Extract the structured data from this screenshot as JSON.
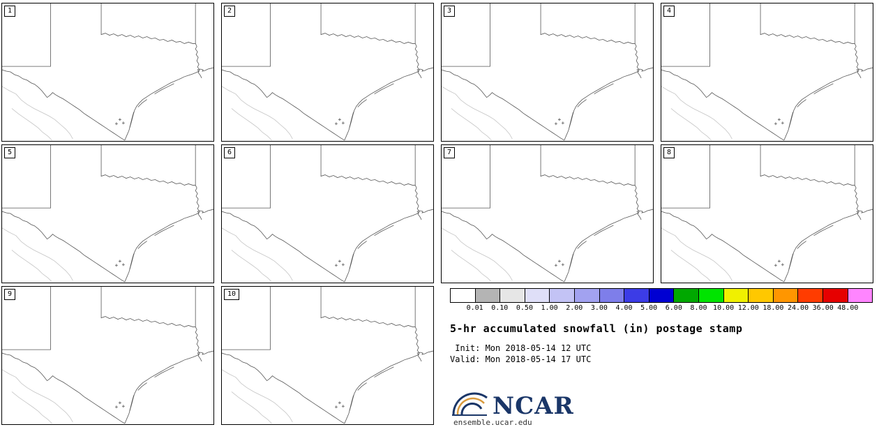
{
  "panels": [
    {
      "label": "1"
    },
    {
      "label": "2"
    },
    {
      "label": "3"
    },
    {
      "label": "4"
    },
    {
      "label": "5"
    },
    {
      "label": "6"
    },
    {
      "label": "7"
    },
    {
      "label": "8"
    },
    {
      "label": "9"
    },
    {
      "label": "10"
    }
  ],
  "colorbar": {
    "labels": [
      "0.01",
      "0.10",
      "0.50",
      "1.00",
      "2.00",
      "3.00",
      "4.00",
      "5.00",
      "6.00",
      "8.00",
      "10.00",
      "12.00",
      "18.00",
      "24.00",
      "36.00",
      "48.00"
    ],
    "colors": [
      "#ffffff",
      "#b4b4b4",
      "#e6e6e6",
      "#dfdff8",
      "#c3c3f5",
      "#a2a2f0",
      "#7e7eea",
      "#3c3ce6",
      "#0000d2",
      "#00a800",
      "#00e400",
      "#f0f000",
      "#ffc800",
      "#ff9600",
      "#ff3c00",
      "#e60000",
      "#ff85ff"
    ]
  },
  "legend": {
    "title": "5-hr accumulated snowfall (in) postage stamp",
    "init_line": " Init: Mon 2018-05-14 12 UTC",
    "valid_line": "Valid: Mon 2018-05-14 17 UTC"
  },
  "branding": {
    "logo_text": "NCAR",
    "url": "ensemble.ucar.edu",
    "logo_color": "#1a3668",
    "logo_accent": "#d99a3d"
  }
}
